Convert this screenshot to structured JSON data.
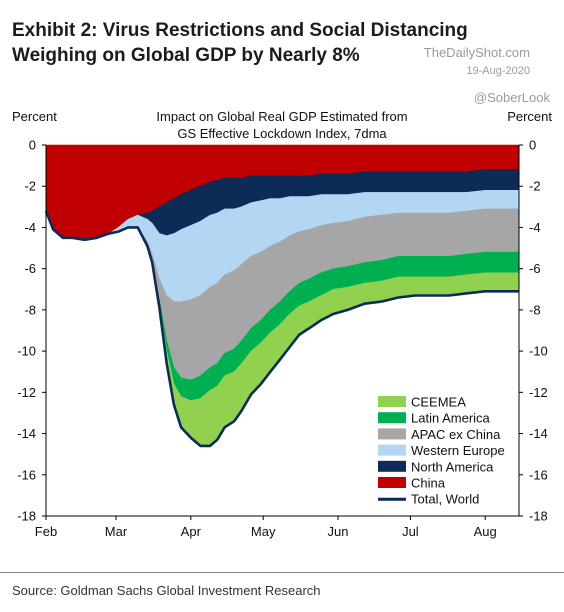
{
  "header": {
    "title": "Exhibit 2: Virus Restrictions and Social Distancing Weighing on Global GDP by Nearly 8%",
    "site": "TheDailyShot.com",
    "date": "19-Aug-2020",
    "handle": "@SoberLook"
  },
  "footer": {
    "source": "Source: Goldman Sachs Global Investment Research"
  },
  "chart_data": {
    "type": "area",
    "title": "Impact on Global Real GDP Estimated from GS Effective Lockdown Index, 7dma",
    "ylabel_left": "Percent",
    "ylabel_right": "Percent",
    "ylim": [
      -18,
      0
    ],
    "yticks": [
      0,
      -2,
      -4,
      -6,
      -8,
      -10,
      -12,
      -14,
      -16,
      -18
    ],
    "xlim": [
      "2020-02-01",
      "2020-08-15"
    ],
    "xticks": [
      {
        "date": "2020-02-01",
        "label": "Feb"
      },
      {
        "date": "2020-03-01",
        "label": "Mar"
      },
      {
        "date": "2020-04-01",
        "label": "Apr"
      },
      {
        "date": "2020-05-01",
        "label": "May"
      },
      {
        "date": "2020-06-01",
        "label": "Jun"
      },
      {
        "date": "2020-07-01",
        "label": "Jul"
      },
      {
        "date": "2020-08-01",
        "label": "Aug"
      }
    ],
    "legend_position": "bottom-right",
    "stacked": true,
    "x": [
      "2020-02-01",
      "2020-02-04",
      "2020-02-08",
      "2020-02-12",
      "2020-02-17",
      "2020-02-22",
      "2020-02-27",
      "2020-03-02",
      "2020-03-06",
      "2020-03-10",
      "2020-03-14",
      "2020-03-16",
      "2020-03-19",
      "2020-03-22",
      "2020-03-25",
      "2020-03-28",
      "2020-04-01",
      "2020-04-05",
      "2020-04-09",
      "2020-04-12",
      "2020-04-15",
      "2020-04-19",
      "2020-04-22",
      "2020-04-26",
      "2020-04-30",
      "2020-05-04",
      "2020-05-08",
      "2020-05-12",
      "2020-05-16",
      "2020-05-20",
      "2020-05-25",
      "2020-05-30",
      "2020-06-05",
      "2020-06-12",
      "2020-06-19",
      "2020-06-26",
      "2020-07-03",
      "2020-07-10",
      "2020-07-17",
      "2020-07-24",
      "2020-08-01",
      "2020-08-07",
      "2020-08-15"
    ],
    "series": [
      {
        "name": "China",
        "color": "#c00000",
        "values": [
          -3.2,
          -4.1,
          -4.5,
          -4.5,
          -4.6,
          -4.5,
          -4.3,
          -4.0,
          -3.6,
          -3.4,
          -3.3,
          -3.2,
          -3.0,
          -2.8,
          -2.6,
          -2.4,
          -2.2,
          -2.0,
          -1.8,
          -1.7,
          -1.6,
          -1.6,
          -1.6,
          -1.5,
          -1.5,
          -1.5,
          -1.5,
          -1.5,
          -1.5,
          -1.5,
          -1.4,
          -1.4,
          -1.4,
          -1.3,
          -1.3,
          -1.3,
          -1.3,
          -1.3,
          -1.3,
          -1.3,
          -1.2,
          -1.2,
          -1.2
        ]
      },
      {
        "name": "North America",
        "color": "#0d2b57",
        "values": [
          0,
          0,
          0,
          0,
          0,
          0,
          0,
          0,
          0,
          0,
          -0.3,
          -0.6,
          -1.3,
          -1.6,
          -1.7,
          -1.7,
          -1.7,
          -1.7,
          -1.6,
          -1.6,
          -1.5,
          -1.5,
          -1.4,
          -1.3,
          -1.2,
          -1.1,
          -1.1,
          -1.0,
          -1.0,
          -1.0,
          -1.0,
          -1.0,
          -1.0,
          -1.0,
          -1.0,
          -1.0,
          -1.0,
          -1.0,
          -1.0,
          -1.0,
          -1.0,
          -1.0,
          -1.0
        ]
      },
      {
        "name": "Western Europe",
        "color": "#b3d7f3",
        "values": [
          0,
          0,
          0,
          0,
          0,
          0,
          0,
          -0.2,
          -0.4,
          -0.6,
          -1.1,
          -1.5,
          -2.2,
          -2.9,
          -3.3,
          -3.5,
          -3.6,
          -3.6,
          -3.5,
          -3.4,
          -3.2,
          -3.0,
          -2.8,
          -2.6,
          -2.5,
          -2.3,
          -2.1,
          -1.9,
          -1.7,
          -1.6,
          -1.5,
          -1.4,
          -1.3,
          -1.2,
          -1.1,
          -1.0,
          -1.0,
          -1.0,
          -1.0,
          -0.9,
          -0.9,
          -0.9,
          -0.9
        ]
      },
      {
        "name": "APAC ex China",
        "color": "#a6a6a6",
        "values": [
          0,
          0,
          0,
          0,
          0,
          0,
          0,
          0,
          0,
          0,
          -0.2,
          -0.4,
          -1.0,
          -2.2,
          -3.2,
          -3.7,
          -3.9,
          -3.9,
          -3.9,
          -3.9,
          -3.8,
          -3.8,
          -3.7,
          -3.5,
          -3.3,
          -3.1,
          -2.9,
          -2.7,
          -2.5,
          -2.4,
          -2.3,
          -2.2,
          -2.2,
          -2.2,
          -2.2,
          -2.1,
          -2.1,
          -2.1,
          -2.1,
          -2.1,
          -2.1,
          -2.1,
          -2.1
        ]
      },
      {
        "name": "Latin America",
        "color": "#00b050",
        "values": [
          0,
          0,
          0,
          0,
          0,
          0,
          0,
          0,
          0,
          0,
          0,
          0,
          -0.2,
          -0.5,
          -0.8,
          -0.9,
          -1.0,
          -1.1,
          -1.1,
          -1.1,
          -1.1,
          -1.1,
          -1.1,
          -1.1,
          -1.1,
          -1.1,
          -1.1,
          -1.1,
          -1.1,
          -1.1,
          -1.1,
          -1.0,
          -1.0,
          -1.0,
          -1.0,
          -1.0,
          -1.0,
          -1.0,
          -1.0,
          -1.0,
          -1.0,
          -1.0,
          -1.0
        ]
      },
      {
        "name": "CEEMEA",
        "color": "#92d050",
        "values": [
          0,
          0,
          0,
          0,
          0,
          0,
          0,
          0,
          0,
          0,
          0,
          0,
          -0.2,
          -0.6,
          -1.0,
          -1.5,
          -1.8,
          -2.3,
          -2.7,
          -2.6,
          -2.5,
          -2.4,
          -2.3,
          -2.1,
          -2.0,
          -1.9,
          -1.7,
          -1.6,
          -1.4,
          -1.3,
          -1.2,
          -1.2,
          -1.1,
          -1.0,
          -1.0,
          -1.0,
          -0.9,
          -0.9,
          -0.9,
          -0.9,
          -0.9,
          -0.9,
          -0.9
        ]
      }
    ],
    "total": {
      "name": "Total, World",
      "color": "#0d2b57",
      "values": [
        -3.2,
        -4.1,
        -4.5,
        -4.5,
        -4.6,
        -4.5,
        -4.3,
        -4.2,
        -4.0,
        -4.0,
        -4.9,
        -5.7,
        -7.9,
        -10.6,
        -12.6,
        -13.7,
        -14.2,
        -14.6,
        -14.6,
        -14.3,
        -13.7,
        -13.4,
        -12.9,
        -12.1,
        -11.6,
        -11.0,
        -10.4,
        -9.8,
        -9.2,
        -8.9,
        -8.5,
        -8.2,
        -8.0,
        -7.7,
        -7.6,
        -7.4,
        -7.3,
        -7.3,
        -7.3,
        -7.2,
        -7.1,
        -7.1,
        -7.1
      ]
    },
    "legend_order": [
      "CEEMEA",
      "Latin America",
      "APAC ex China",
      "Western Europe",
      "North America",
      "China",
      "Total, World"
    ]
  }
}
